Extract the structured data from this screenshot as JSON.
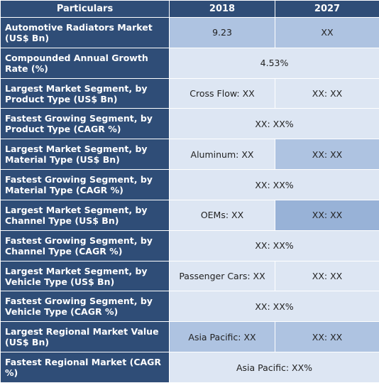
{
  "headers": {
    "particulars": "Particulars",
    "year_start": "2018",
    "year_end": "2027"
  },
  "rows": [
    {
      "label": "Automotive Radiators Market (US$ Bn)",
      "v2018": "9.23",
      "v2027": "XX"
    },
    {
      "label": "Compounded Annual Growth Rate (%)",
      "merged": "4.53%"
    },
    {
      "label": "Largest Market Segment, by Product Type (US$ Bn)",
      "v2018": "Cross Flow: XX",
      "v2027": "XX: XX"
    },
    {
      "label": "Fastest Growing Segment, by Product Type (CAGR %)",
      "merged": "XX: XX%"
    },
    {
      "label": "Largest Market Segment, by Material Type (US$ Bn)",
      "v2018": "Aluminum: XX",
      "v2027": "XX: XX"
    },
    {
      "label": "Fastest Growing Segment, by Material Type (CAGR %)",
      "merged": "XX: XX%"
    },
    {
      "label": "Largest Market Segment, by Channel Type (US$ Bn)",
      "v2018": "OEMs: XX",
      "v2027": "XX: XX"
    },
    {
      "label": "Fastest Growing Segment, by Channel Type (CAGR %)",
      "merged": "XX: XX%"
    },
    {
      "label": "Largest Market Segment, by Vehicle Type (US$ Bn)",
      "v2018": "Passenger Cars: XX",
      "v2027": "XX: XX"
    },
    {
      "label": "Fastest Growing Segment, by Vehicle Type (CAGR %)",
      "merged": "XX: XX%"
    },
    {
      "label": "Largest Regional Market Value (US$ Bn)",
      "v2018": "Asia Pacific: XX",
      "v2027": "XX: XX"
    },
    {
      "label": "Fastest Regional Market (CAGR %)",
      "merged": "Asia Pacific: XX%"
    }
  ]
}
